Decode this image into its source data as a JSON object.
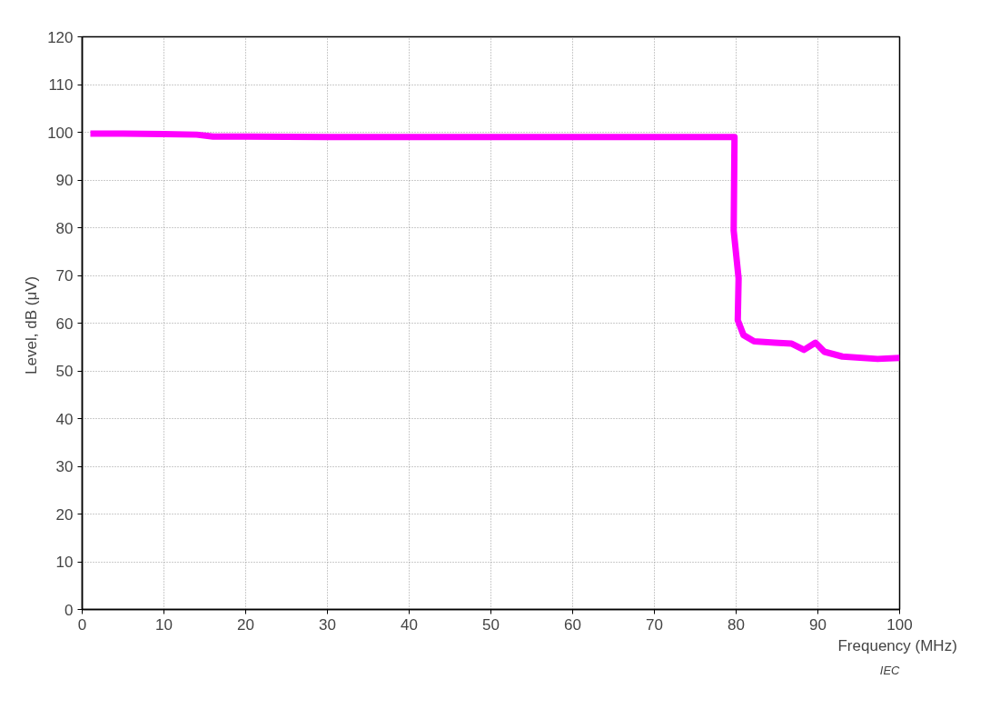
{
  "chart_data": {
    "type": "line",
    "xlabel": "Frequency  (MHz)",
    "ylabel": "Level, dB  (μV)",
    "x": [
      1,
      5,
      10,
      14,
      16,
      20,
      30,
      40,
      50,
      60,
      70,
      76,
      79.8,
      79.7,
      80.3,
      80.2,
      80.9,
      82.2,
      84.7,
      86.8,
      88.3,
      89.7,
      90.8,
      93,
      97.3,
      100
    ],
    "series": [
      {
        "color": "#ff00ff",
        "values": [
          99.7,
          99.7,
          99.6,
          99.5,
          99.1,
          99.1,
          99,
          99,
          99,
          99,
          99,
          99,
          99,
          79.4,
          69.4,
          60.6,
          57.5,
          56.2,
          55.9,
          55.7,
          54.4,
          55.9,
          54,
          53,
          52.5,
          52.7
        ]
      }
    ],
    "xlim": [
      0,
      100
    ],
    "ylim": [
      0,
      120
    ],
    "xticks": [
      0,
      10,
      20,
      30,
      40,
      50,
      60,
      70,
      80,
      90,
      100
    ],
    "yticks": [
      0,
      10,
      20,
      30,
      40,
      50,
      60,
      70,
      80,
      90,
      100,
      110,
      120
    ],
    "grid": true,
    "line_style": "solid",
    "marker": "none",
    "annotations": [
      "IEC"
    ]
  }
}
